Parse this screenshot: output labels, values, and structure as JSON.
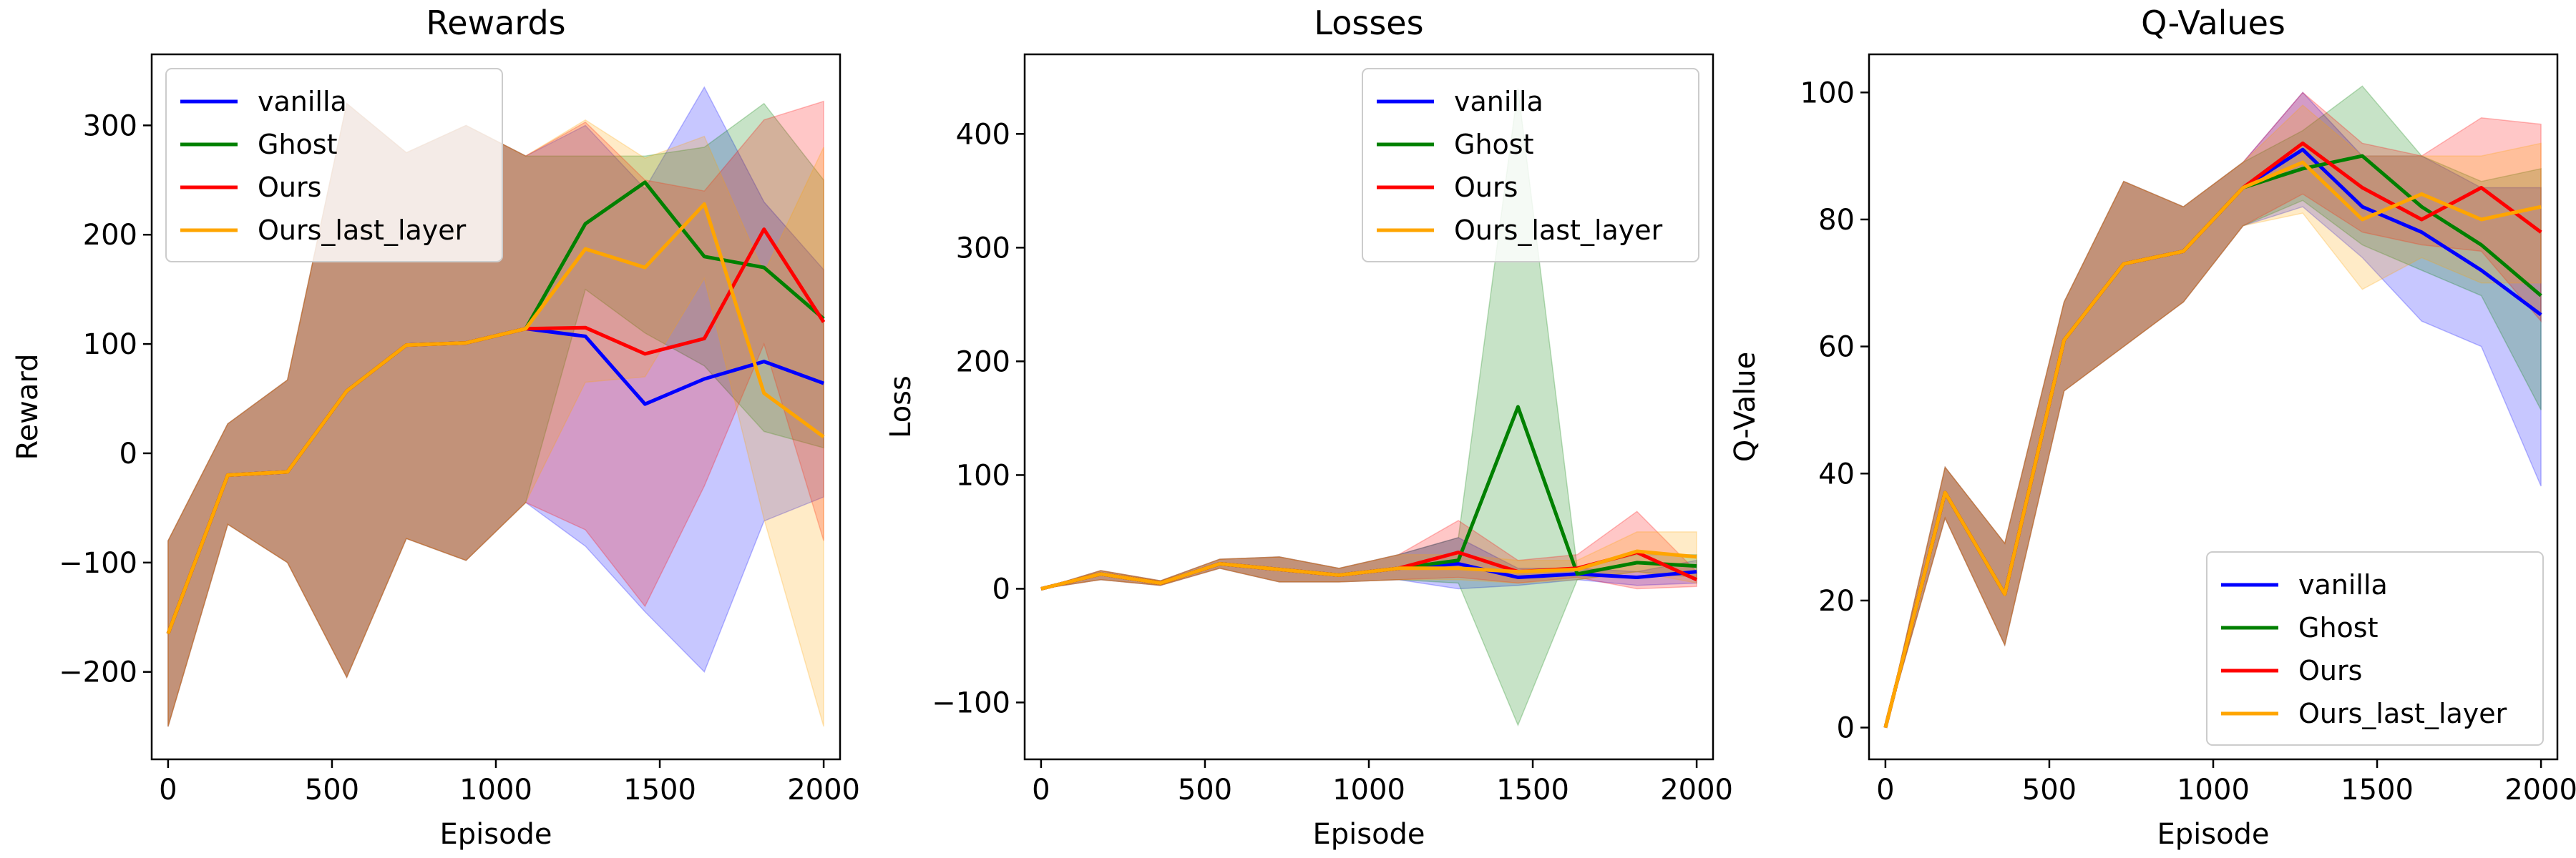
{
  "chart_data": [
    {
      "type": "line",
      "title": "Rewards",
      "xlabel": "Episode",
      "ylabel": "Reward",
      "xlim": [
        -50,
        2050
      ],
      "ylim": [
        -280,
        365
      ],
      "xticks": [
        0,
        500,
        1000,
        1500,
        2000
      ],
      "yticks": [
        -200,
        -100,
        0,
        100,
        200,
        300
      ],
      "legend": "upper-left",
      "x": [
        0,
        182,
        364,
        545,
        727,
        909,
        1091,
        1273,
        1455,
        1636,
        1818,
        2000
      ],
      "series": [
        {
          "name": "vanilla",
          "color": "#0000ff",
          "mean": [
            -165,
            -20,
            -17,
            57,
            99,
            101,
            114,
            107,
            45,
            68,
            84,
            64
          ],
          "lower": [
            -250,
            -65,
            -100,
            -205,
            -78,
            -98,
            -45,
            -85,
            -145,
            -200,
            -62,
            -40
          ],
          "upper": [
            -80,
            27,
            67,
            320,
            275,
            300,
            272,
            300,
            242,
            335,
            230,
            168
          ]
        },
        {
          "name": "Ghost",
          "color": "#008000",
          "mean": [
            -165,
            -20,
            -17,
            57,
            99,
            101,
            114,
            210,
            248,
            180,
            170,
            123
          ],
          "lower": [
            -250,
            -65,
            -100,
            -205,
            -78,
            -98,
            -45,
            150,
            110,
            80,
            20,
            5
          ],
          "upper": [
            -80,
            27,
            67,
            320,
            275,
            300,
            272,
            272,
            272,
            280,
            320,
            250
          ]
        },
        {
          "name": "Ours",
          "color": "#ff0000",
          "mean": [
            -165,
            -20,
            -17,
            57,
            99,
            101,
            114,
            115,
            91,
            105,
            205,
            120
          ],
          "lower": [
            -250,
            -65,
            -100,
            -205,
            -78,
            -98,
            -45,
            -70,
            -140,
            -30,
            100,
            -80
          ],
          "upper": [
            -80,
            27,
            67,
            320,
            275,
            300,
            272,
            303,
            250,
            240,
            305,
            322
          ]
        },
        {
          "name": "Ours_last_layer",
          "color": "#ffa500",
          "mean": [
            -165,
            -20,
            -17,
            57,
            99,
            101,
            114,
            187,
            170,
            228,
            55,
            15
          ],
          "lower": [
            -250,
            -65,
            -100,
            -205,
            -78,
            -98,
            -45,
            65,
            70,
            160,
            -60,
            -250
          ],
          "upper": [
            -80,
            27,
            67,
            320,
            275,
            300,
            272,
            305,
            270,
            290,
            165,
            280
          ]
        }
      ]
    },
    {
      "type": "line",
      "title": "Losses",
      "xlabel": "Episode",
      "ylabel": "Loss",
      "xlim": [
        -50,
        2050
      ],
      "ylim": [
        -150,
        470
      ],
      "xticks": [
        0,
        500,
        1000,
        1500,
        2000
      ],
      "yticks": [
        -100,
        0,
        100,
        200,
        300,
        400
      ],
      "legend": "upper-right",
      "x": [
        0,
        182,
        364,
        545,
        727,
        909,
        1091,
        1273,
        1455,
        1636,
        1818,
        2000
      ],
      "series": [
        {
          "name": "vanilla",
          "color": "#0000ff",
          "mean": [
            0,
            13,
            5,
            22,
            17,
            12,
            18,
            22,
            10,
            13,
            10,
            15
          ],
          "lower": [
            0,
            8,
            3,
            18,
            6,
            6,
            8,
            0,
            3,
            8,
            3,
            5
          ],
          "upper": [
            0,
            16,
            7,
            26,
            28,
            18,
            30,
            45,
            18,
            18,
            15,
            25
          ]
        },
        {
          "name": "Ghost",
          "color": "#008000",
          "mean": [
            0,
            13,
            5,
            22,
            17,
            12,
            18,
            25,
            160,
            13,
            23,
            20
          ],
          "lower": [
            0,
            8,
            3,
            18,
            6,
            6,
            8,
            5,
            -120,
            8,
            15,
            10
          ],
          "upper": [
            0,
            16,
            7,
            26,
            28,
            18,
            30,
            45,
            440,
            18,
            30,
            30
          ]
        },
        {
          "name": "Ours",
          "color": "#ff0000",
          "mean": [
            0,
            13,
            5,
            22,
            17,
            12,
            18,
            32,
            15,
            18,
            32,
            8
          ],
          "lower": [
            0,
            8,
            3,
            18,
            6,
            6,
            8,
            10,
            5,
            10,
            0,
            2
          ],
          "upper": [
            0,
            16,
            7,
            26,
            28,
            18,
            30,
            60,
            25,
            30,
            68,
            15
          ]
        },
        {
          "name": "Ours_last_layer",
          "color": "#ffa500",
          "mean": [
            0,
            13,
            5,
            22,
            17,
            12,
            18,
            18,
            15,
            17,
            33,
            28
          ],
          "lower": [
            0,
            8,
            3,
            18,
            6,
            6,
            8,
            8,
            5,
            8,
            15,
            5
          ],
          "upper": [
            0,
            16,
            7,
            26,
            28,
            18,
            30,
            30,
            25,
            25,
            50,
            50
          ]
        }
      ]
    },
    {
      "type": "line",
      "title": "Q-Values",
      "xlabel": "Episode",
      "ylabel": "Q-Value",
      "xlim": [
        -50,
        2050
      ],
      "ylim": [
        -5,
        106
      ],
      "xticks": [
        0,
        500,
        1000,
        1500,
        2000
      ],
      "yticks": [
        0,
        20,
        40,
        60,
        80,
        100
      ],
      "legend": "lower-right",
      "x": [
        0,
        182,
        364,
        545,
        727,
        909,
        1091,
        1273,
        1455,
        1636,
        1818,
        2000
      ],
      "series": [
        {
          "name": "vanilla",
          "color": "#0000ff",
          "mean": [
            0,
            37,
            21,
            61,
            73,
            75,
            85,
            91,
            82,
            78,
            72,
            65
          ],
          "lower": [
            0,
            33,
            13,
            53,
            60,
            67,
            79,
            82,
            74,
            64,
            60,
            38
          ],
          "upper": [
            0,
            41,
            29,
            67,
            86,
            82,
            89,
            100,
            90,
            90,
            85,
            85
          ]
        },
        {
          "name": "Ghost",
          "color": "#008000",
          "mean": [
            0,
            37,
            21,
            61,
            73,
            75,
            85,
            88,
            90,
            82,
            76,
            68
          ],
          "lower": [
            0,
            33,
            13,
            53,
            60,
            67,
            79,
            83,
            76,
            72,
            68,
            50
          ],
          "upper": [
            0,
            41,
            29,
            67,
            86,
            82,
            89,
            94,
            101,
            90,
            86,
            88
          ]
        },
        {
          "name": "Ours",
          "color": "#ff0000",
          "mean": [
            0,
            37,
            21,
            61,
            73,
            75,
            85,
            92,
            85,
            80,
            85,
            78
          ],
          "lower": [
            0,
            33,
            13,
            53,
            60,
            67,
            79,
            84,
            78,
            76,
            75,
            64
          ],
          "upper": [
            0,
            41,
            29,
            67,
            86,
            82,
            89,
            100,
            92,
            90,
            96,
            95
          ]
        },
        {
          "name": "Ours_last_layer",
          "color": "#ffa500",
          "mean": [
            0,
            37,
            21,
            61,
            73,
            75,
            85,
            89,
            80,
            84,
            80,
            82
          ],
          "lower": [
            0,
            33,
            13,
            53,
            60,
            67,
            79,
            81,
            69,
            74,
            70,
            70
          ],
          "upper": [
            0,
            41,
            29,
            67,
            86,
            82,
            89,
            98,
            90,
            90,
            90,
            92
          ]
        }
      ]
    }
  ]
}
